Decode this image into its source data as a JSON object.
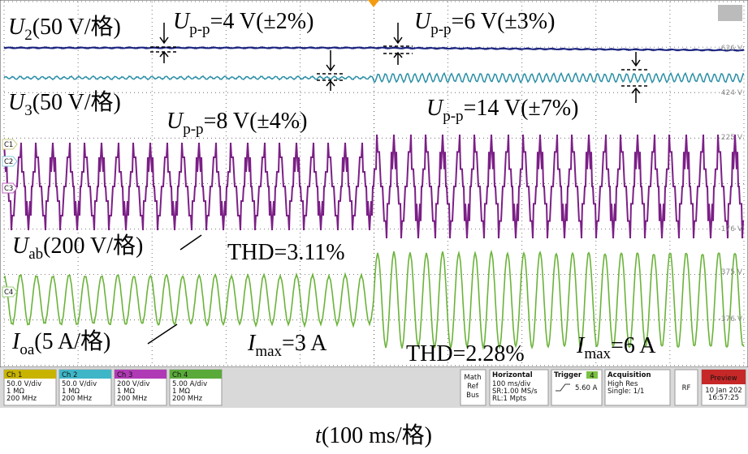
{
  "annotations": [
    {
      "main": "U",
      "sub": "2",
      "rest": "(50 V/格)"
    },
    {
      "main": "U",
      "sub": "p-p",
      "rest": "=4 V(±2%)"
    },
    {
      "main": "U",
      "sub": "p-p",
      "rest": "=6 V(±3%)"
    },
    {
      "main": "U",
      "sub": "3",
      "rest": "(50 V/格)"
    },
    {
      "main": "U",
      "sub": "p-p",
      "rest": "=8 V(±4%)"
    },
    {
      "main": "U",
      "sub": "p-p",
      "rest": "=14 V(±7%)"
    },
    {
      "main": "U",
      "sub": "ab",
      "rest": "(200 V/格)"
    },
    {
      "main": "THD=3.11%"
    },
    {
      "main": "I",
      "sub": "oa",
      "rest": "(5 A/格)"
    },
    {
      "main": "I",
      "sub": "max",
      "rest": "=3 A"
    },
    {
      "main": "THD=2.28%"
    },
    {
      "main": "I",
      "sub": "max",
      "rest": "=6 A"
    }
  ],
  "scale_labels": [
    "626 V",
    "424 V",
    "225 V",
    "-176 V",
    "375 V",
    "-376 V"
  ],
  "channel_markers": [
    "C1",
    "C2",
    "C3",
    "C4"
  ],
  "status_bar": {
    "channels": [
      {
        "name": "Ch 1",
        "lines": [
          "50.0 V/div",
          "1 MΩ",
          "200 MHz"
        ]
      },
      {
        "name": "Ch 2",
        "lines": [
          "50.0 V/div",
          "1 MΩ",
          "200 MHz"
        ]
      },
      {
        "name": "Ch 3",
        "lines": [
          "200 V/div",
          "1 MΩ",
          "200 MHz"
        ]
      },
      {
        "name": "Ch 4",
        "lines": [
          "5.00 A/div",
          "1 MΩ",
          "200 MHz"
        ]
      }
    ],
    "math": [
      "Math",
      "Ref",
      "Bus"
    ],
    "horizontal": {
      "title": "Horizontal",
      "lines": [
        "100 ms/div",
        "SR:1.00 MS/s",
        "RL:1 Mpts"
      ]
    },
    "trigger": {
      "title": "Trigger",
      "channel": "4",
      "level": "5.60 A"
    },
    "acquisition": {
      "title": "Acquisition",
      "lines": [
        "High Res",
        "Single: 1/1"
      ]
    },
    "rf": "RF",
    "preview": {
      "title": "Preview",
      "lines": [
        "10 Jan 202",
        "16:57:25"
      ]
    }
  },
  "caption": {
    "var": "t",
    "rest": "(100 ms/格)"
  }
}
